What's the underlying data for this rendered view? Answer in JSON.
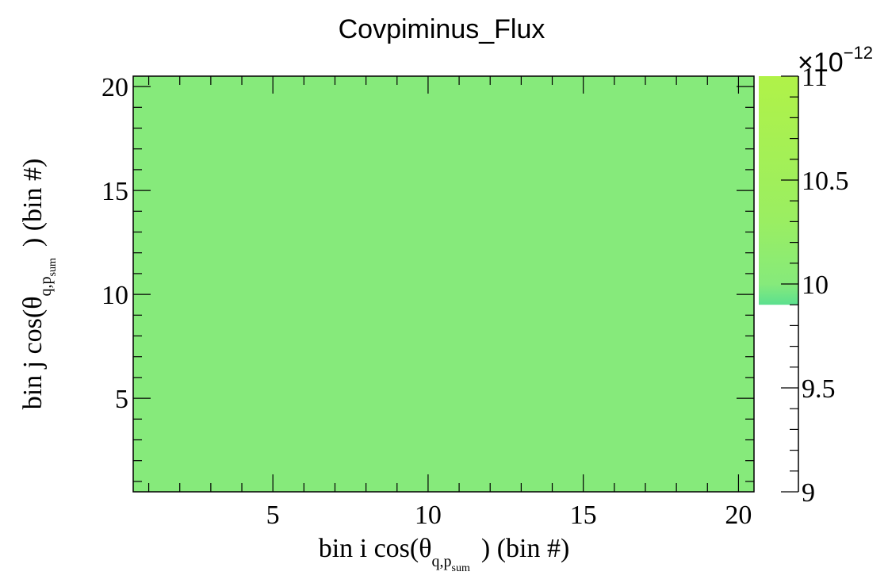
{
  "chart_data": {
    "type": "heatmap",
    "title": "Covpiminus_Flux",
    "xlabel": {
      "pre": "bin i cos(θ",
      "sub1": "q,p",
      "sub2": "sum",
      "post": ") (bin #)"
    },
    "ylabel": {
      "pre": "bin j cos(θ",
      "sub1": "q,p",
      "sub2": "sum",
      "post": ") (bin #)"
    },
    "xlim": [
      0.5,
      20.5
    ],
    "ylim": [
      0.5,
      20.5
    ],
    "x_ticks": [
      5,
      10,
      15,
      20
    ],
    "y_ticks": [
      5,
      10,
      15,
      20
    ],
    "cell_value": 9.95e-12,
    "colorbar": {
      "range": [
        9,
        11
      ],
      "ticks": [
        "9",
        "9.5",
        "10",
        "10.5",
        "11"
      ],
      "tick_values": [
        9,
        9.5,
        10,
        10.5,
        11
      ],
      "exponent_label": "×10",
      "exponent": "−12",
      "colored_range": [
        9.9,
        11
      ],
      "stops": [
        {
          "v": 9.9,
          "color": "#5ce08f"
        },
        {
          "v": 10.0,
          "color": "#86ea7b"
        },
        {
          "v": 10.3,
          "color": "#9aee62"
        },
        {
          "v": 11.0,
          "color": "#b0f248"
        }
      ]
    },
    "fill_color": "#86ea7b",
    "grid": false
  }
}
